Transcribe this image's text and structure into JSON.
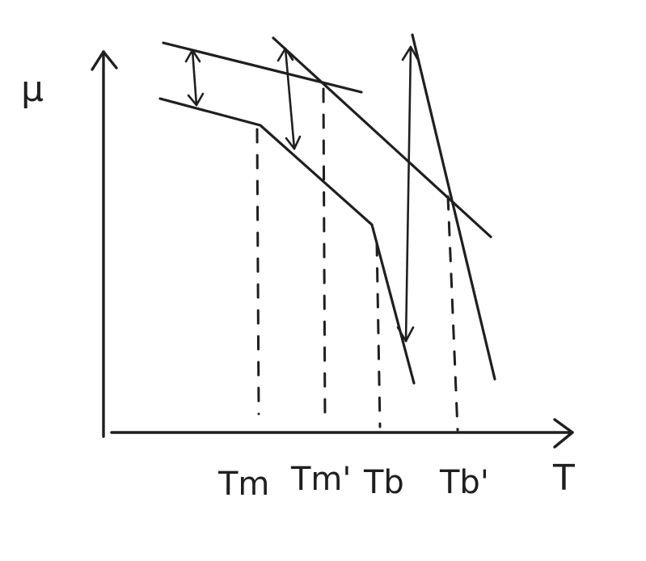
{
  "diagram": {
    "y_axis_label": "μ",
    "x_axis_label": "T",
    "ticks": [
      "Tm",
      "Tm'",
      "Tb",
      "Tb'"
    ],
    "colors": {
      "ink": "#1f1f1f",
      "background": "#ffffff"
    }
  }
}
